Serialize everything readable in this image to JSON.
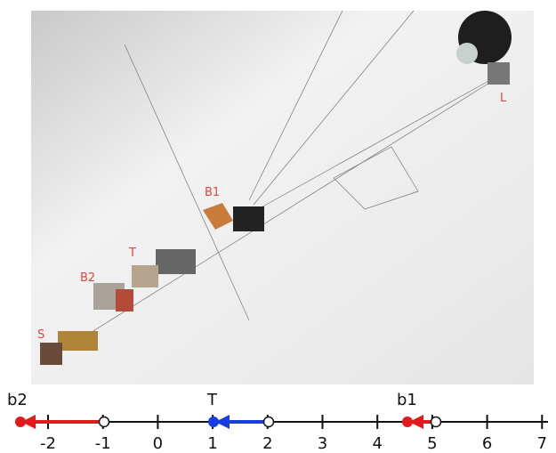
{
  "photo": {
    "labels": [
      "L",
      "B1",
      "T",
      "B2",
      "S"
    ]
  },
  "number_line": {
    "points": [
      "b2",
      "T",
      "b1"
    ],
    "ticks": [
      -2,
      -1,
      0,
      1,
      2,
      3,
      4,
      5,
      6,
      7
    ]
  }
}
